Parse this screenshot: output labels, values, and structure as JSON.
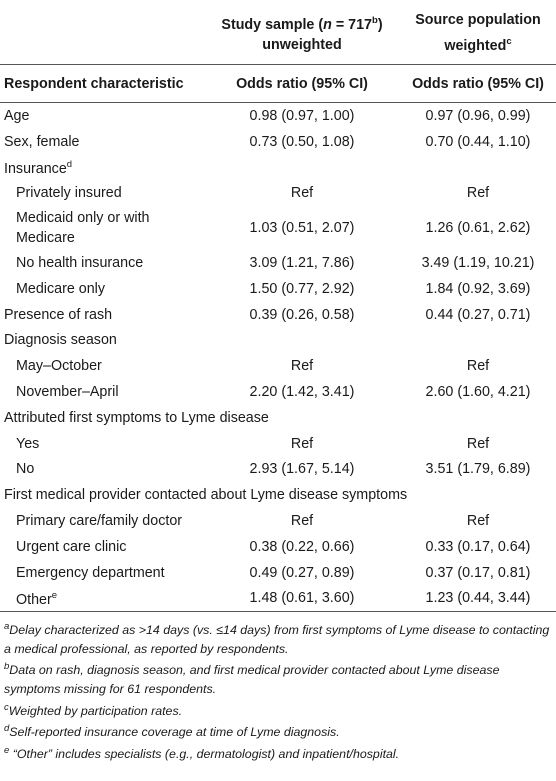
{
  "header": {
    "col1_top": "",
    "col2_top_line1_pre": "Study sample (",
    "col2_top_n": "n",
    "col2_top_eq": " = 717",
    "col2_top_sup": "b",
    "col2_top_post": ")",
    "col2_top_line2": "unweighted",
    "col3_top_line1": "Source population",
    "col3_top_line2": "weighted",
    "col3_top_sup": "c",
    "col1_sub": "Respondent characteristic",
    "col2_sub": "Odds ratio (95% CI)",
    "col3_sub": "Odds ratio (95% CI)"
  },
  "rows": [
    {
      "label": "Age",
      "indent": false,
      "a": "0.98 (0.97, 1.00)",
      "b": "0.97 (0.96, 0.99)"
    },
    {
      "label": "Sex, female",
      "indent": false,
      "a": "0.73 (0.50, 1.08)",
      "b": "0.70 (0.44, 1.10)"
    },
    {
      "label": "Insurance",
      "sup": "d",
      "indent": false,
      "a": "",
      "b": ""
    },
    {
      "label": "Privately insured",
      "indent": true,
      "a": "Ref",
      "b": "Ref"
    },
    {
      "label": "Medicaid only or with Medicare",
      "indent": true,
      "a": "1.03 (0.51, 2.07)",
      "b": "1.26 (0.61, 2.62)",
      "tall": true
    },
    {
      "label": "No health insurance",
      "indent": true,
      "a": "3.09 (1.21, 7.86)",
      "b": "3.49 (1.19, 10.21)"
    },
    {
      "label": "Medicare only",
      "indent": true,
      "a": "1.50 (0.77, 2.92)",
      "b": "1.84 (0.92, 3.69)"
    },
    {
      "label": "Presence of rash",
      "indent": false,
      "a": "0.39 (0.26, 0.58)",
      "b": "0.44 (0.27, 0.71)"
    },
    {
      "label": "Diagnosis season",
      "indent": false,
      "a": "",
      "b": ""
    },
    {
      "label": "May–October",
      "indent": true,
      "a": "Ref",
      "b": "Ref"
    },
    {
      "label": "November–April",
      "indent": true,
      "a": "2.20 (1.42, 3.41)",
      "b": "2.60 (1.60, 4.21)"
    },
    {
      "label": "Attributed first symptoms to Lyme disease",
      "indent": false,
      "a": "",
      "b": "",
      "span": true
    },
    {
      "label": "Yes",
      "indent": true,
      "a": "Ref",
      "b": "Ref"
    },
    {
      "label": "No",
      "indent": true,
      "a": "2.93 (1.67, 5.14)",
      "b": "3.51 (1.79, 6.89)"
    },
    {
      "label": "First medical provider contacted about Lyme disease symptoms",
      "indent": false,
      "a": "",
      "b": "",
      "span": true
    },
    {
      "label": "Primary care/family doctor",
      "indent": true,
      "a": "Ref",
      "b": "Ref"
    },
    {
      "label": "Urgent care clinic",
      "indent": true,
      "a": "0.38 (0.22, 0.66)",
      "b": "0.33 (0.17, 0.64)"
    },
    {
      "label": "Emergency department",
      "indent": true,
      "a": "0.49 (0.27, 0.89)",
      "b": "0.37 (0.17, 0.81)"
    },
    {
      "label": "Other",
      "sup": "e",
      "indent": true,
      "a": "1.48 (0.61, 3.60)",
      "b": "1.23 (0.44, 3.44)"
    }
  ],
  "footnotes": [
    {
      "sup": "a",
      "text": "Delay characterized as >14 days (vs. ≤14 days) from first symptoms of Lyme disease to contacting a medical professional, as reported by respondents."
    },
    {
      "sup": "b",
      "text": "Data on rash, diagnosis season, and first medical provider contacted about Lyme disease symptoms missing for 61 respondents."
    },
    {
      "sup": "c",
      "text": "Weighted by participation rates."
    },
    {
      "sup": "d",
      "text": "Self-reported insurance coverage at time of Lyme diagnosis."
    },
    {
      "sup": "e",
      "text": " “Other” includes specialists (e.g., dermatologist) and inpatient/hospital."
    }
  ]
}
